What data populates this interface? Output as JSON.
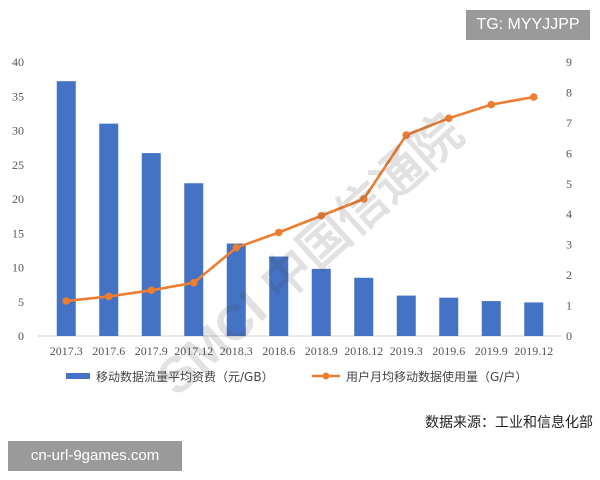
{
  "chart_data": {
    "type": "bar-line-combo",
    "categories": [
      "2017.3",
      "2017.6",
      "2017.9",
      "2017.12",
      "2018.3",
      "2018.6",
      "2018.9",
      "2018.12",
      "2019.3",
      "2019.6",
      "2019.9",
      "2019.12"
    ],
    "series": [
      {
        "name": "移动数据流量平均资费（元/GB）",
        "type": "bar",
        "axis": "left",
        "color": "#4472C4",
        "values": [
          37.2,
          31,
          26.7,
          22.3,
          13.5,
          11.6,
          9.8,
          8.5,
          5.9,
          5.6,
          5.1,
          4.9
        ]
      },
      {
        "name": "用户月均移动数据使用量（G/户）",
        "type": "line",
        "axis": "right",
        "color": "#ED7D31",
        "values": [
          1.15,
          1.3,
          1.5,
          1.75,
          2.9,
          3.4,
          3.95,
          4.5,
          6.6,
          7.15,
          7.6,
          7.85
        ]
      }
    ],
    "y_left": {
      "ylim": [
        0,
        40
      ],
      "ticks": [
        "0",
        "5",
        "10",
        "15",
        "20",
        "25",
        "30",
        "35",
        "40"
      ]
    },
    "y_right": {
      "ylim": [
        0,
        9
      ],
      "ticks": [
        "0",
        "1",
        "2",
        "3",
        "4",
        "5",
        "6",
        "7",
        "8",
        "9"
      ]
    },
    "grid": false,
    "legend_position": "bottom"
  },
  "source_note": "数据来源：工业和信息化部",
  "watermark": "SMCI 中国信通院",
  "badges": {
    "top_right": "TG: MYYJJPP",
    "bottom_left": "cn-url-9games.com"
  }
}
